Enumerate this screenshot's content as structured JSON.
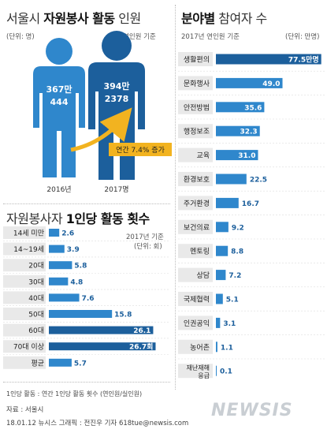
{
  "chart_data": [
    {
      "type": "pictograph",
      "title_prefix": "서울시 ",
      "title_bold": "자원봉사 활동",
      "title_suffix": " 인원",
      "unit_label": "(단위: 명)",
      "basis_label": "연인원 기준",
      "categories": [
        "2016년",
        "2017명"
      ],
      "values": [
        3670444,
        3942378
      ],
      "value_labels_top": [
        "367만",
        "394만"
      ],
      "value_labels_bottom": [
        "444",
        "2378"
      ],
      "annotation": "연간 7.4% 증가",
      "colors": {
        "2016": "#2f87cc",
        "2017": "#1c5f9c",
        "arrow": "#f2b320"
      }
    },
    {
      "type": "bar",
      "orientation": "horizontal",
      "title_prefix": "자원봉사자 ",
      "title_bold": "1인당 활동 횟수",
      "basis_label": "2017년 기준",
      "unit_label": "(단위: 회)",
      "categories": [
        "14세 미만",
        "14~19세",
        "20대",
        "30대",
        "40대",
        "50대",
        "60대",
        "70대 이상",
        "평균"
      ],
      "values": [
        2.6,
        3.9,
        5.8,
        4.8,
        7.6,
        15.8,
        26.1,
        26.7,
        5.7
      ],
      "value_labels": [
        "2.6",
        "3.9",
        "5.8",
        "4.8",
        "7.6",
        "15.8",
        "26.1",
        "26.7회",
        "5.7"
      ],
      "xlim": [
        0,
        27
      ],
      "colors": {
        "bar": "#2f87cc",
        "bar_dark": "#1c5f9c",
        "label_box": "#e9e9e9"
      }
    },
    {
      "type": "bar",
      "orientation": "horizontal",
      "title_bold": "분야별",
      "title_suffix": " 참여자 수",
      "basis_label": "2017년 연인원 기준",
      "unit_label": "(단위: 만명)",
      "categories": [
        "생활편의",
        "문화행사",
        "안전방범",
        "행정보조",
        "교육",
        "환경보호",
        "주거환경",
        "보건의료",
        "멘토링",
        "상담",
        "국제협력",
        "인권공익",
        "농어촌",
        "재난재해응급"
      ],
      "category_lines": [
        [
          "생활편의"
        ],
        [
          "문화행사"
        ],
        [
          "안전방범"
        ],
        [
          "행정보조"
        ],
        [
          "교육"
        ],
        [
          "환경보호"
        ],
        [
          "주거환경"
        ],
        [
          "보건의료"
        ],
        [
          "멘토링"
        ],
        [
          "상담"
        ],
        [
          "국제협력"
        ],
        [
          "인권공익"
        ],
        [
          "농어촌"
        ],
        [
          "재난재해",
          "응급"
        ]
      ],
      "values": [
        77.5,
        49.0,
        35.6,
        32.3,
        31.0,
        22.5,
        16.7,
        9.2,
        8.8,
        7.2,
        5.1,
        3.1,
        1.1,
        0.1
      ],
      "value_labels": [
        "77.5만명",
        "49.0",
        "35.6",
        "32.3",
        "31.0",
        "22.5",
        "16.7",
        "9.2",
        "8.8",
        "7.2",
        "5.1",
        "3.1",
        "1.1",
        "0.1"
      ],
      "xlim": [
        0,
        80
      ],
      "colors": {
        "bar": "#2f87cc",
        "bar_dark": "#1c5f9c",
        "label_box": "#e9e9e9"
      }
    }
  ],
  "footnote": "1인당 활동 : 연간 1인당 활동 횟수 (연인원/실인원)",
  "source": "자료 : 서울시",
  "credit": "18.01.12 뉴시스 그래픽 : 전진우 기자 618tue@newsis.com",
  "logo": "NEWSIS"
}
